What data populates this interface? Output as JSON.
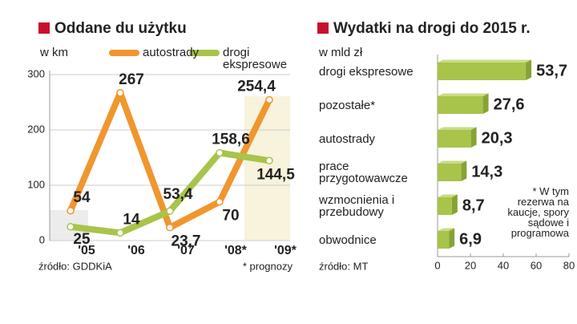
{
  "chart_data": [
    {
      "type": "line",
      "title": "Oddane du użytku",
      "y_label": "w km",
      "categories": [
        "'05",
        "'06",
        "'07",
        "'08*",
        "'09*"
      ],
      "series": [
        {
          "name": "autostrady",
          "color": "#f0962e",
          "values": [
            54,
            267,
            23.7,
            70,
            254.4
          ],
          "value_labels": [
            "54",
            "267",
            "23,7",
            "70",
            "254,4"
          ]
        },
        {
          "name": "drogi ekspresowe",
          "color": "#a8c44a",
          "values": [
            25,
            14,
            53.4,
            158.6,
            144.5
          ],
          "value_labels": [
            "25",
            "14",
            "53,4",
            "158,6",
            "144,5"
          ]
        }
      ],
      "ylim": [
        0,
        300
      ],
      "yticks": [
        0,
        100,
        200,
        300
      ],
      "grid": true,
      "source": "źródło: GDDKiA",
      "note": "* prognozy"
    },
    {
      "type": "bar",
      "orientation": "horizontal",
      "title": "Wydatki na drogi do 2015 r.",
      "x_label": "w mld zł",
      "categories": [
        "drogi ekspresowe",
        "pozostałe*",
        "autostrady",
        "prace przygotowawcze",
        "wzmocnienia i przebudowy",
        "obwodnice"
      ],
      "values": [
        53.7,
        27.6,
        20.3,
        14.3,
        8.7,
        6.9
      ],
      "value_labels": [
        "53,7",
        "27,6",
        "20,3",
        "14,3",
        "8,7",
        "6,9"
      ],
      "color": "#a8c44a",
      "highlight_color": "#c8102e",
      "xlim": [
        0,
        80
      ],
      "xticks": [
        0,
        20,
        40,
        60,
        80
      ],
      "source": "źródło: MT",
      "note": "* W tym rezerwa na kaucje, spory sądowe i programowa"
    }
  ]
}
